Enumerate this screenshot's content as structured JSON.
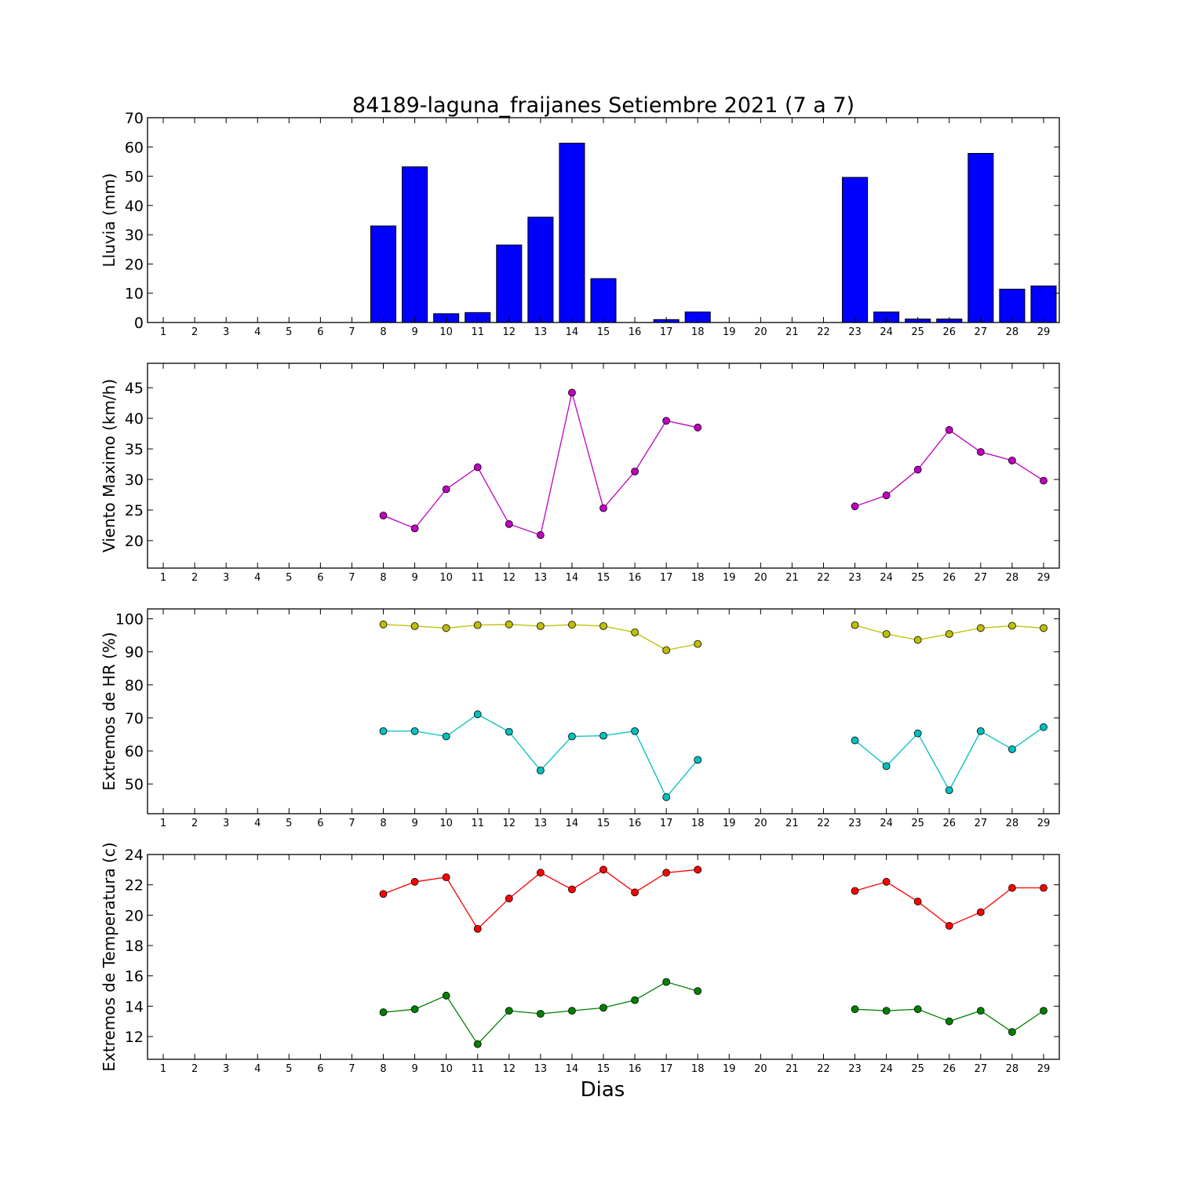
{
  "title": "84189-laguna_fraijanes Setiembre 2021  (7 a 7)",
  "xlabel": "Dias",
  "chart_data": [
    {
      "type": "bar",
      "ylabel": "Lluvia (mm)",
      "ylim": [
        0,
        70
      ],
      "yticks": [
        0,
        10,
        20,
        30,
        40,
        50,
        60,
        70
      ],
      "x": [
        1,
        2,
        3,
        4,
        5,
        6,
        7,
        8,
        9,
        10,
        11,
        12,
        13,
        14,
        15,
        16,
        17,
        18,
        19,
        20,
        21,
        22,
        23,
        24,
        25,
        26,
        27,
        28,
        29
      ],
      "series": [
        {
          "color": "#0000ff",
          "values": [
            0,
            0,
            0,
            0,
            0,
            0,
            0,
            33,
            53.2,
            3,
            3.4,
            26.5,
            36,
            61.3,
            15,
            0,
            1,
            3.6,
            0,
            0,
            0,
            0,
            49.6,
            3.6,
            1.2,
            1.2,
            57.8,
            11.4,
            12.5
          ]
        }
      ]
    },
    {
      "type": "line",
      "ylabel": "Viento Maximo (km/h)",
      "ylim": [
        15.5,
        49
      ],
      "yticks": [
        20,
        25,
        30,
        35,
        40,
        45
      ],
      "x": [
        1,
        2,
        3,
        4,
        5,
        6,
        7,
        8,
        9,
        10,
        11,
        12,
        13,
        14,
        15,
        16,
        17,
        18,
        19,
        20,
        21,
        22,
        23,
        24,
        25,
        26,
        27,
        28,
        29
      ],
      "series": [
        {
          "color": "#bf00bf",
          "values": [
            null,
            null,
            null,
            null,
            null,
            null,
            null,
            24.1,
            22,
            28.4,
            32,
            22.7,
            20.9,
            44.2,
            25.3,
            31.3,
            39.6,
            38.5,
            null,
            null,
            null,
            null,
            25.6,
            27.4,
            31.6,
            38.1,
            34.5,
            33.1,
            29.8
          ]
        }
      ]
    },
    {
      "type": "line",
      "ylabel": "Extremos de HR (%)",
      "ylim": [
        41,
        103
      ],
      "yticks": [
        50,
        60,
        70,
        80,
        90,
        100
      ],
      "x": [
        1,
        2,
        3,
        4,
        5,
        6,
        7,
        8,
        9,
        10,
        11,
        12,
        13,
        14,
        15,
        16,
        17,
        18,
        19,
        20,
        21,
        22,
        23,
        24,
        25,
        26,
        27,
        28,
        29
      ],
      "series": [
        {
          "color": "#bfbf00",
          "values": [
            null,
            null,
            null,
            null,
            null,
            null,
            null,
            98.3,
            97.8,
            97.2,
            98.1,
            98.3,
            97.8,
            98.2,
            97.8,
            95.9,
            90.5,
            92.4,
            null,
            null,
            null,
            null,
            98.1,
            95.4,
            93.6,
            95.4,
            97.2,
            97.9,
            97.2
          ]
        },
        {
          "color": "#00bfbf",
          "values": [
            null,
            null,
            null,
            null,
            null,
            null,
            null,
            66,
            66,
            64.4,
            71.1,
            65.8,
            54.1,
            64.4,
            64.6,
            66,
            46,
            57.3,
            null,
            null,
            null,
            null,
            63.2,
            55.4,
            65.3,
            48.1,
            66,
            60.5,
            67.2
          ]
        }
      ]
    },
    {
      "type": "line",
      "ylabel": "Extremos de Temperatura (c)",
      "ylim": [
        10.5,
        24
      ],
      "yticks": [
        12,
        14,
        16,
        18,
        20,
        22,
        24
      ],
      "x": [
        1,
        2,
        3,
        4,
        5,
        6,
        7,
        8,
        9,
        10,
        11,
        12,
        13,
        14,
        15,
        16,
        17,
        18,
        19,
        20,
        21,
        22,
        23,
        24,
        25,
        26,
        27,
        28,
        29
      ],
      "series": [
        {
          "color": "#ff0000",
          "values": [
            null,
            null,
            null,
            null,
            null,
            null,
            null,
            21.4,
            22.2,
            22.5,
            19.1,
            21.1,
            22.8,
            21.7,
            23,
            21.5,
            22.8,
            23,
            null,
            null,
            null,
            null,
            21.6,
            22.2,
            20.9,
            19.3,
            20.2,
            21.8,
            21.8
          ]
        },
        {
          "color": "#008000",
          "values": [
            null,
            null,
            null,
            null,
            null,
            null,
            null,
            13.6,
            13.8,
            14.7,
            11.5,
            13.7,
            13.5,
            13.7,
            13.9,
            14.4,
            15.6,
            15,
            null,
            null,
            null,
            null,
            13.8,
            13.7,
            13.8,
            13,
            13.7,
            12.3,
            13.7
          ]
        }
      ]
    }
  ]
}
